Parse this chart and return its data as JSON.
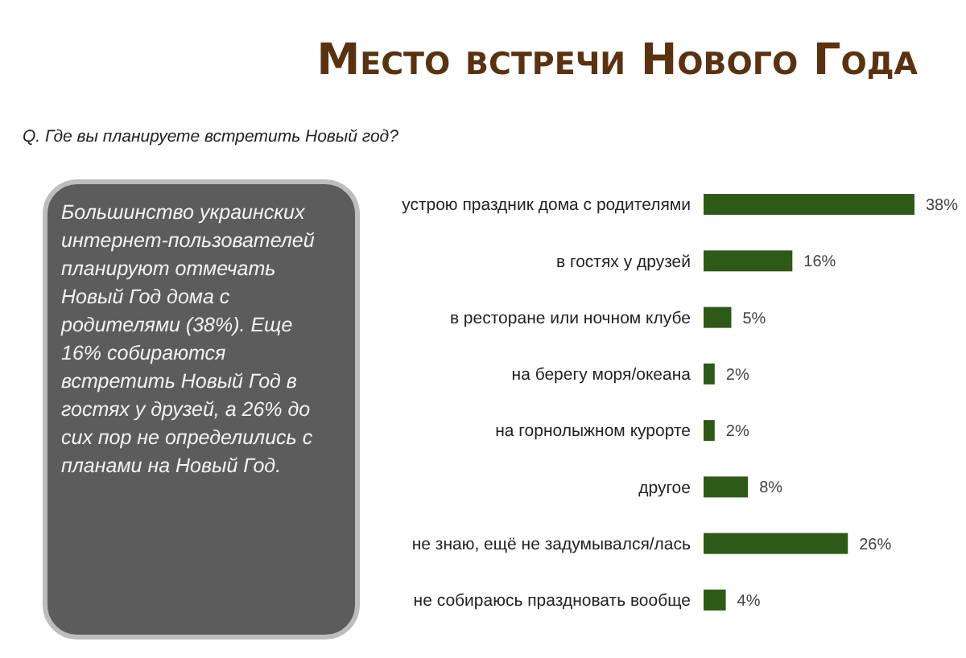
{
  "chart_data": {
    "type": "bar",
    "orientation": "horizontal",
    "title": "Место встречи Нового Года",
    "subtitle": "Q. Где вы планируете встретить Новый год?",
    "categories": [
      "устрою праздник дома с родителями",
      "в гостях у друзей",
      "в ресторане или ночном клубе",
      "на берегу моря/океана",
      "на горнолыжном курорте",
      "другое",
      "не знаю, ещё не задумывался/лась",
      "не собираюсь праздновать вообще"
    ],
    "values": [
      38,
      16,
      5,
      2,
      2,
      8,
      26,
      4
    ],
    "value_labels": [
      "38%",
      "16%",
      "5%",
      "2%",
      "2%",
      "8%",
      "26%",
      "4%"
    ],
    "color": "#2e5a17",
    "annotations": [
      "Большинство украинских интернет-пользователей планируют отмечать Новый Год дома с родителями (38%). Еще 16% собираются встретить Новый Год в гостях у друзей, а 26% до сих пор не определились с планами на Новый Год."
    ],
    "grid": false
  }
}
